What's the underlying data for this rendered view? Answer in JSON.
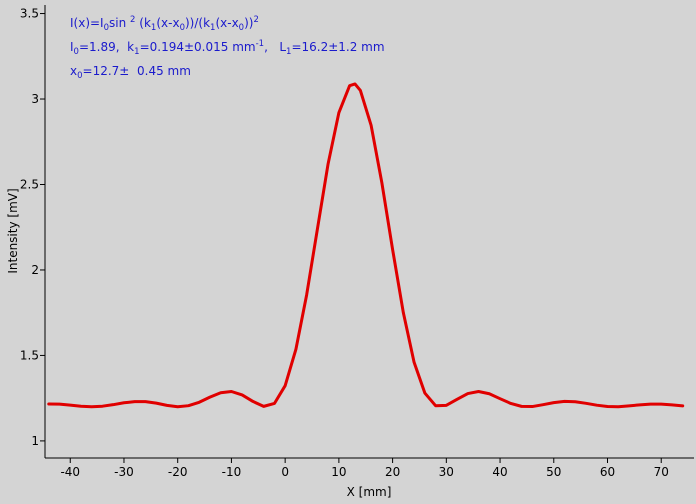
{
  "chart_data": {
    "type": "line",
    "x_label": "X [mm]",
    "y_label": "Intensity [mV]",
    "annotations": [
      [
        {
          "text": "I(x)=I"
        },
        {
          "text": "0",
          "script": "sub"
        },
        {
          "text": "sin "
        },
        {
          "text": "2",
          "script": "sup"
        },
        {
          "text": " (k"
        },
        {
          "text": "1",
          "script": "sub"
        },
        {
          "text": "(x-x"
        },
        {
          "text": "0",
          "script": "sub"
        },
        {
          "text": "))/(k"
        },
        {
          "text": "1",
          "script": "sub"
        },
        {
          "text": "(x-x"
        },
        {
          "text": "0",
          "script": "sub"
        },
        {
          "text": "))"
        },
        {
          "text": "2",
          "script": "sup"
        }
      ],
      [
        {
          "text": "I"
        },
        {
          "text": "0",
          "script": "sub"
        },
        {
          "text": "=1.89,  k"
        },
        {
          "text": "1",
          "script": "sub"
        },
        {
          "text": "=0.194±0.015 mm"
        },
        {
          "text": "-1",
          "script": "sup"
        },
        {
          "text": ",   L"
        },
        {
          "text": "1",
          "script": "sub"
        },
        {
          "text": "=16.2±1.2 mm"
        }
      ],
      [
        {
          "text": "x"
        },
        {
          "text": "0",
          "script": "sub"
        },
        {
          "text": "=12.7±  0.45 mm"
        }
      ]
    ],
    "x": [
      -44,
      -42,
      -40,
      -38,
      -36,
      -34,
      -32,
      -30,
      -28,
      -26,
      -24,
      -22,
      -20,
      -18,
      -16,
      -14,
      -12,
      -10,
      -8,
      -6,
      -4,
      -2,
      0,
      2,
      4,
      6,
      8,
      10,
      12,
      13,
      14,
      16,
      18,
      20,
      22,
      24,
      26,
      28,
      30,
      32,
      34,
      36,
      38,
      40,
      42,
      44,
      46,
      48,
      50,
      52,
      54,
      56,
      58,
      60,
      62,
      64,
      66,
      68,
      70,
      72,
      74
    ],
    "series": [
      {
        "color": "#e00000",
        "values": [
          1.216,
          1.215,
          1.209,
          1.203,
          1.2,
          1.203,
          1.212,
          1.223,
          1.23,
          1.23,
          1.221,
          1.208,
          1.2,
          1.206,
          1.226,
          1.256,
          1.282,
          1.289,
          1.269,
          1.231,
          1.202,
          1.219,
          1.323,
          1.536,
          1.854,
          2.239,
          2.622,
          2.92,
          3.078,
          3.088,
          3.05,
          2.846,
          2.51,
          2.12,
          1.75,
          1.46,
          1.28,
          1.206,
          1.208,
          1.243,
          1.277,
          1.289,
          1.276,
          1.247,
          1.219,
          1.202,
          1.201,
          1.212,
          1.224,
          1.231,
          1.229,
          1.22,
          1.209,
          1.201,
          1.2,
          1.205,
          1.211,
          1.215,
          1.215,
          1.211,
          1.205
        ]
      }
    ],
    "xlim": [
      -44.7,
      76.1
    ],
    "ylim": [
      0.9,
      3.55
    ],
    "xticks": [
      -40,
      -30,
      -20,
      -10,
      0,
      10,
      20,
      30,
      40,
      50,
      60,
      70
    ],
    "yticks": [
      1,
      1.5,
      2,
      2.5,
      3,
      3.5
    ]
  }
}
